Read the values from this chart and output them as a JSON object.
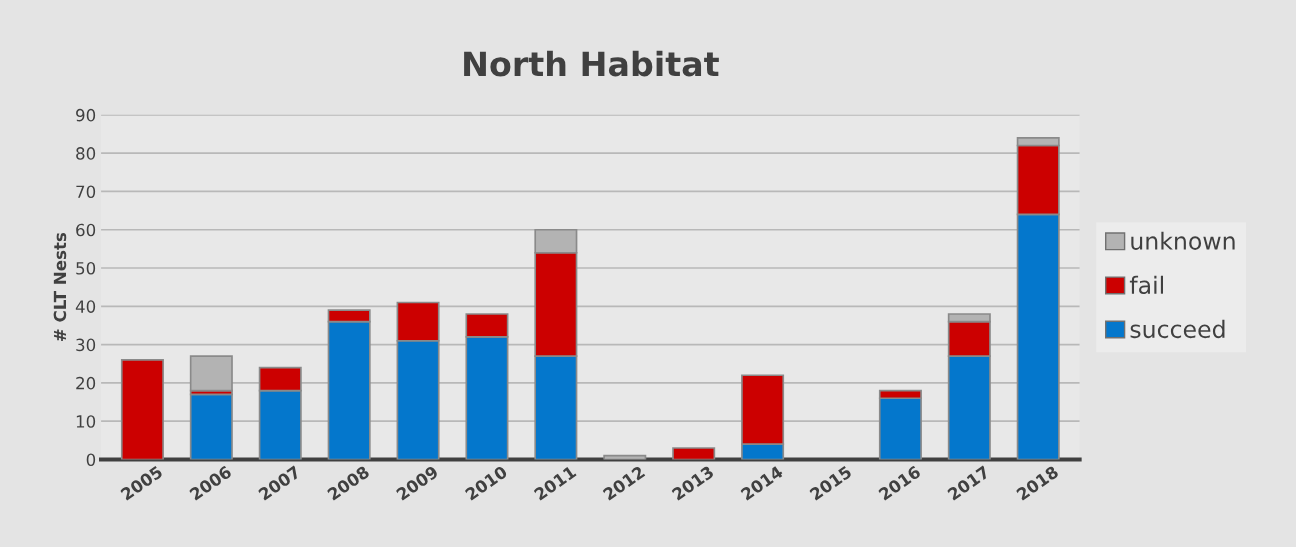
{
  "chart_data": {
    "type": "bar",
    "title": "North Habitat",
    "ylabel": "# CLT Nests",
    "categories": [
      "2005",
      "2006",
      "2007",
      "2008",
      "2009",
      "2010",
      "2011",
      "2012",
      "2013",
      "2014",
      "2015",
      "2016",
      "2017",
      "2018"
    ],
    "stacked": true,
    "series": [
      {
        "name": "succeed",
        "color": "#0477cc",
        "values": [
          0,
          17,
          18,
          36,
          31,
          32,
          27,
          0,
          0,
          4,
          0,
          16,
          27,
          64
        ]
      },
      {
        "name": "fail",
        "color": "#cc0000",
        "values": [
          26,
          1,
          6,
          3,
          10,
          6,
          27,
          0,
          3,
          18,
          0,
          2,
          9,
          18
        ]
      },
      {
        "name": "unknown",
        "color": "#b3b3b3",
        "values": [
          0,
          9,
          0,
          0,
          0,
          0,
          6,
          1,
          0,
          0,
          0,
          0,
          2,
          2
        ]
      }
    ],
    "ylim": [
      0,
      90
    ],
    "yticks": [
      0,
      10,
      20,
      30,
      40,
      50,
      60,
      70,
      80,
      90
    ],
    "grid": "y",
    "legend": "right"
  }
}
